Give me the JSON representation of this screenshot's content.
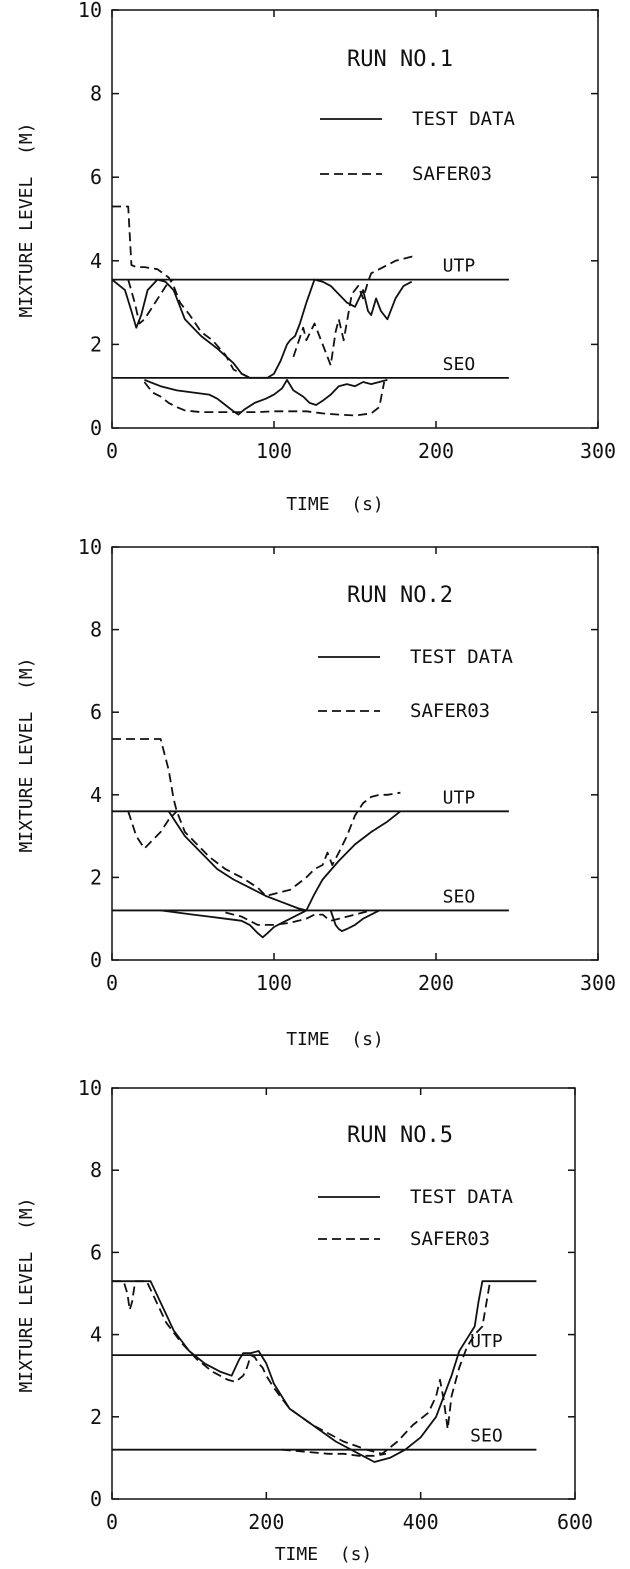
{
  "chart_data": [
    {
      "type": "line",
      "title": "RUN NO.1",
      "xlabel": "TIME  (s)",
      "ylabel": "MIXTURE LEVEL  (M)",
      "xlim": [
        0,
        300
      ],
      "ylim": [
        0,
        10
      ],
      "xticks": [
        "0",
        "100",
        "200",
        "300"
      ],
      "yticks": [
        "0",
        "2",
        "4",
        "6",
        "8",
        "10"
      ],
      "legend": [
        {
          "label": "TEST DATA",
          "style": "solid"
        },
        {
          "label": "SAFER03",
          "style": "dashed"
        }
      ],
      "reference_lines": [
        {
          "label": "UTP",
          "y": 3.55,
          "x_end": 245
        },
        {
          "label": "SEO",
          "y": 1.2,
          "x_end": 245
        }
      ],
      "series": [
        {
          "style": "solid",
          "x": [
            0,
            8,
            12,
            15,
            18,
            22,
            28,
            33,
            38,
            45,
            55,
            65,
            75,
            80,
            85,
            90,
            96,
            100,
            104,
            108,
            110,
            113,
            116,
            120,
            125,
            130,
            135,
            140,
            145,
            150,
            155,
            158,
            160,
            163,
            166,
            170,
            175,
            180,
            185
          ],
          "y": [
            3.55,
            3.3,
            2.8,
            2.4,
            2.7,
            3.3,
            3.55,
            3.5,
            3.3,
            2.6,
            2.2,
            1.9,
            1.55,
            1.3,
            1.2,
            1.2,
            1.2,
            1.3,
            1.6,
            2.0,
            2.1,
            2.2,
            2.5,
            3.0,
            3.55,
            3.5,
            3.4,
            3.2,
            3.0,
            2.9,
            3.3,
            2.8,
            2.7,
            3.1,
            2.8,
            2.6,
            3.1,
            3.4,
            3.5
          ]
        },
        {
          "style": "solid",
          "x": [
            20,
            30,
            40,
            50,
            60,
            65,
            70,
            75,
            78,
            82,
            88,
            95,
            100,
            105,
            108,
            112,
            118,
            122,
            126,
            130,
            135,
            140,
            145,
            150,
            155,
            160,
            165,
            170
          ],
          "y": [
            1.15,
            1.0,
            0.9,
            0.85,
            0.8,
            0.7,
            0.55,
            0.4,
            0.32,
            0.45,
            0.6,
            0.7,
            0.8,
            0.95,
            1.15,
            0.9,
            0.75,
            0.6,
            0.55,
            0.65,
            0.8,
            1.0,
            1.05,
            1.0,
            1.1,
            1.05,
            1.1,
            1.15
          ]
        },
        {
          "style": "dashed",
          "x": [
            0,
            10,
            12,
            15,
            20,
            28,
            35,
            38,
            42,
            48,
            55,
            62,
            70,
            75,
            80,
            85
          ],
          "y": [
            5.3,
            5.3,
            3.9,
            3.85,
            3.85,
            3.8,
            3.6,
            3.4,
            3.0,
            2.7,
            2.3,
            2.1,
            1.75,
            1.4,
            1.3,
            1.2
          ]
        },
        {
          "style": "dashed",
          "x": [
            10,
            14,
            17,
            20,
            25,
            30,
            35,
            38
          ],
          "y": [
            3.55,
            3.0,
            2.5,
            2.6,
            2.9,
            3.2,
            3.5,
            3.55
          ]
        },
        {
          "style": "dashed",
          "x": [
            112,
            118,
            120,
            125,
            128,
            133,
            135,
            138,
            140,
            143,
            148,
            152,
            155,
            158,
            160,
            165,
            170,
            175,
            180,
            185,
            188
          ],
          "y": [
            1.7,
            2.4,
            2.1,
            2.5,
            2.2,
            1.7,
            1.5,
            2.3,
            2.6,
            2.1,
            3.2,
            3.4,
            3.1,
            3.5,
            3.7,
            3.8,
            3.9,
            4.0,
            4.05,
            4.1,
            4.1
          ]
        },
        {
          "style": "dashed",
          "x": [
            20,
            25,
            30,
            35,
            40,
            45,
            50,
            55,
            60,
            70,
            80,
            90,
            100,
            110,
            120,
            130,
            140,
            150,
            160,
            165,
            168
          ],
          "y": [
            1.1,
            0.85,
            0.75,
            0.6,
            0.5,
            0.42,
            0.4,
            0.38,
            0.38,
            0.38,
            0.38,
            0.38,
            0.4,
            0.4,
            0.4,
            0.35,
            0.32,
            0.3,
            0.35,
            0.5,
            1.1
          ]
        }
      ]
    },
    {
      "type": "line",
      "title": "RUN NO.2",
      "xlabel": "TIME  (s)",
      "ylabel": "MIXTURE LEVEL  (M)",
      "xlim": [
        0,
        300
      ],
      "ylim": [
        0,
        10
      ],
      "xticks": [
        "0",
        "100",
        "200",
        "300"
      ],
      "yticks": [
        "0",
        "2",
        "4",
        "6",
        "8",
        "10"
      ],
      "legend": [
        {
          "label": "TEST DATA",
          "style": "solid"
        },
        {
          "label": "SAFER03",
          "style": "dashed"
        }
      ],
      "reference_lines": [
        {
          "label": "UTP",
          "y": 3.6,
          "x_end": 245
        },
        {
          "label": "SEO",
          "y": 1.2,
          "x_end": 245
        }
      ],
      "series": [
        {
          "style": "solid",
          "x": [
            35,
            40,
            45,
            55,
            65,
            75,
            85,
            95,
            105,
            115,
            120,
            125,
            130,
            140,
            150,
            160,
            170,
            178
          ],
          "y": [
            3.6,
            3.3,
            3.0,
            2.6,
            2.2,
            1.95,
            1.75,
            1.55,
            1.4,
            1.25,
            1.2,
            1.6,
            1.95,
            2.4,
            2.8,
            3.1,
            3.35,
            3.6
          ]
        },
        {
          "style": "solid",
          "x": [
            30,
            40,
            50,
            60,
            70,
            80,
            85,
            90,
            93,
            96,
            100,
            105,
            110,
            115,
            120
          ],
          "y": [
            1.2,
            1.15,
            1.1,
            1.05,
            1.0,
            0.95,
            0.85,
            0.65,
            0.55,
            0.65,
            0.8,
            0.9,
            1.0,
            1.1,
            1.2
          ]
        },
        {
          "style": "solid",
          "x": [
            135,
            138,
            140,
            142,
            145,
            150,
            155,
            160,
            165
          ],
          "y": [
            1.2,
            0.85,
            0.75,
            0.7,
            0.75,
            0.85,
            1.0,
            1.1,
            1.2
          ]
        },
        {
          "style": "dashed",
          "x": [
            0,
            10,
            20,
            30,
            35,
            38,
            40,
            45,
            50,
            60,
            70,
            80,
            90,
            95,
            100,
            110,
            120,
            125,
            130,
            133,
            136,
            140,
            145,
            150,
            155,
            160,
            165,
            170,
            178
          ],
          "y": [
            5.35,
            5.35,
            5.35,
            5.35,
            4.6,
            3.9,
            3.6,
            3.1,
            2.9,
            2.5,
            2.2,
            2.0,
            1.75,
            1.55,
            1.6,
            1.7,
            2.0,
            2.2,
            2.3,
            2.6,
            2.3,
            2.6,
            3.0,
            3.5,
            3.8,
            3.95,
            4.0,
            4.0,
            4.05
          ]
        },
        {
          "style": "dashed",
          "x": [
            10,
            15,
            20,
            25,
            30,
            35,
            40
          ],
          "y": [
            3.6,
            3.0,
            2.7,
            2.9,
            3.1,
            3.4,
            3.6
          ]
        },
        {
          "style": "dashed",
          "x": [
            70,
            80,
            85,
            90,
            100,
            110,
            120,
            125,
            130,
            133,
            135,
            140,
            150,
            160
          ],
          "y": [
            1.15,
            1.05,
            0.95,
            0.85,
            0.85,
            0.9,
            1.0,
            1.1,
            1.1,
            1.0,
            0.95,
            1.0,
            1.1,
            1.2
          ]
        }
      ]
    },
    {
      "type": "line",
      "title": "RUN NO.5",
      "xlabel": "TIME  (s)",
      "ylabel": "MIXTURE LEVEL  (M)",
      "xlim": [
        0,
        600
      ],
      "ylim": [
        0,
        10
      ],
      "xticks": [
        "0",
        "200",
        "400",
        "600"
      ],
      "yticks": [
        "0",
        "2",
        "4",
        "6",
        "8",
        "10"
      ],
      "legend": [
        {
          "label": "TEST DATA",
          "style": "solid"
        },
        {
          "label": "SAFER03",
          "style": "dashed"
        }
      ],
      "reference_lines": [
        {
          "label": "UTP",
          "y": 3.5,
          "x_end": 550
        },
        {
          "label": "SEO",
          "y": 1.2,
          "x_end": 550
        }
      ],
      "series": [
        {
          "style": "solid",
          "x": [
            0,
            20,
            40,
            50,
            60,
            70,
            80,
            100,
            120,
            140,
            155,
            165,
            170,
            180,
            190,
            200,
            210,
            230,
            260,
            290,
            320,
            340,
            360,
            380,
            400,
            420,
            430,
            440,
            450,
            460,
            470,
            475,
            480,
            500,
            520,
            550
          ],
          "y": [
            5.3,
            5.3,
            5.3,
            5.3,
            4.9,
            4.5,
            4.1,
            3.6,
            3.3,
            3.1,
            3.0,
            3.4,
            3.55,
            3.55,
            3.6,
            3.3,
            2.8,
            2.2,
            1.8,
            1.4,
            1.1,
            0.9,
            1.0,
            1.2,
            1.5,
            2.0,
            2.5,
            3.0,
            3.6,
            3.9,
            4.2,
            4.8,
            5.3,
            5.3,
            5.3,
            5.3
          ]
        },
        {
          "style": "dashed",
          "x": [
            0,
            15,
            20,
            23,
            26,
            30,
            35,
            45,
            55,
            70,
            90,
            110,
            130,
            150,
            160,
            170,
            175,
            180,
            185,
            190,
            195,
            200,
            210,
            230,
            260,
            300,
            330,
            350,
            370,
            390,
            410,
            420,
            425,
            430,
            435,
            440,
            450,
            460,
            470,
            480,
            490
          ],
          "y": [
            5.3,
            5.3,
            5.0,
            4.6,
            4.8,
            5.3,
            5.3,
            5.3,
            4.9,
            4.3,
            3.8,
            3.4,
            3.1,
            2.9,
            2.85,
            3.0,
            3.2,
            3.5,
            3.45,
            3.3,
            3.2,
            3.0,
            2.7,
            2.2,
            1.8,
            1.4,
            1.2,
            1.1,
            1.4,
            1.8,
            2.1,
            2.5,
            2.9,
            2.4,
            1.7,
            2.5,
            3.2,
            3.7,
            4.0,
            4.2,
            5.3
          ]
        },
        {
          "style": "dashed",
          "x": [
            220,
            250,
            280,
            300,
            320,
            340,
            355
          ],
          "y": [
            1.2,
            1.15,
            1.1,
            1.1,
            1.05,
            1.05,
            1.1
          ]
        }
      ]
    }
  ]
}
